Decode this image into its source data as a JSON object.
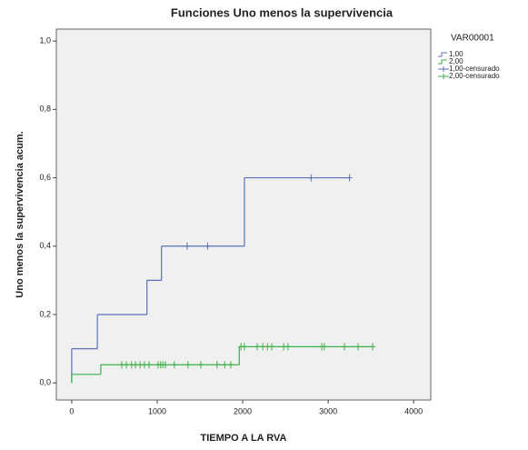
{
  "chart_data": {
    "type": "line",
    "title": "Funciones Uno menos la supervivencia",
    "xlabel": "TIEMPO A LA RVA",
    "ylabel": "Uno menos la supervivencia acum.",
    "legend_title": "VAR00001",
    "legend": "right",
    "xlim": [
      -180,
      4200
    ],
    "ylim": [
      -0.05,
      1.035
    ],
    "xticks": [
      0,
      1000,
      2000,
      3000,
      4000
    ],
    "yticks": [
      {
        "value": 0,
        "label": "0,0"
      },
      {
        "value": 0.2,
        "label": "0,2"
      },
      {
        "value": 0.4,
        "label": "0,4"
      },
      {
        "value": 0.6,
        "label": "0,6"
      },
      {
        "value": 0.8,
        "label": "0,8"
      },
      {
        "value": 1.0,
        "label": "1,0"
      }
    ],
    "series": [
      {
        "name": "1,00",
        "color": "#5a72b8",
        "type": "step",
        "x": [
          0,
          0,
          300,
          880,
          1050,
          2020,
          3250
        ],
        "values": [
          0,
          0.1,
          0.2,
          0.3,
          0.4,
          0.6,
          0.6
        ]
      },
      {
        "name": "2,00",
        "color": "#3cb04a",
        "type": "step",
        "x": [
          0,
          0,
          340,
          1960,
          3520
        ],
        "values": [
          0,
          0.025,
          0.053,
          0.106,
          0.106
        ]
      },
      {
        "name": "1,00-censurado",
        "color": "#5a72b8",
        "type": "scatter",
        "marker": "+",
        "x": [
          1350,
          1590,
          2800,
          3250
        ],
        "values": [
          0.4,
          0.4,
          0.6,
          0.6
        ]
      },
      {
        "name": "2,00-censurado",
        "color": "#3cb04a",
        "type": "scatter",
        "marker": "+",
        "x": [
          585,
          640,
          700,
          745,
          800,
          850,
          905,
          1010,
          1040,
          1065,
          1095,
          1200,
          1360,
          1510,
          1700,
          1790,
          1860,
          1980,
          2020,
          2170,
          2235,
          2290,
          2340,
          2480,
          2530,
          2925,
          2955,
          3190,
          3350,
          3520
        ],
        "values": [
          0.053,
          0.053,
          0.053,
          0.053,
          0.053,
          0.053,
          0.053,
          0.053,
          0.053,
          0.053,
          0.053,
          0.053,
          0.053,
          0.053,
          0.053,
          0.053,
          0.053,
          0.106,
          0.106,
          0.106,
          0.106,
          0.106,
          0.106,
          0.106,
          0.106,
          0.106,
          0.106,
          0.106,
          0.106,
          0.106
        ]
      }
    ]
  }
}
